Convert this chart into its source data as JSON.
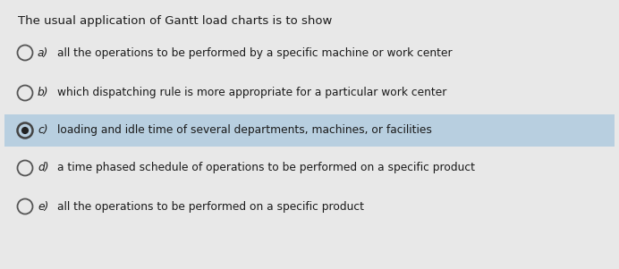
{
  "title": "The usual application of Gantt load charts is to show",
  "options": [
    {
      "label": "a)",
      "text": "all the operations to be performed by a specific machine or work center",
      "selected": false
    },
    {
      "label": "b)",
      "text": "which dispatching rule is more appropriate for a particular work center",
      "selected": false
    },
    {
      "label": "c)",
      "text": "loading and idle time of several departments, machines, or facilities",
      "selected": true
    },
    {
      "label": "d)",
      "text": "a time phased schedule of operations to be performed on a specific product",
      "selected": false
    },
    {
      "label": "e)",
      "text": "all the operations to be performed on a specific product",
      "selected": false
    }
  ],
  "bg_color": "#e8e8e8",
  "highlight_color": "#b8cfe0",
  "title_fontsize": 9.5,
  "option_fontsize": 8.8,
  "label_fontsize": 8.8,
  "text_color": "#1a1a1a",
  "circle_color": "#555555",
  "selected_fill": "#222222",
  "selected_outer": "#444444"
}
